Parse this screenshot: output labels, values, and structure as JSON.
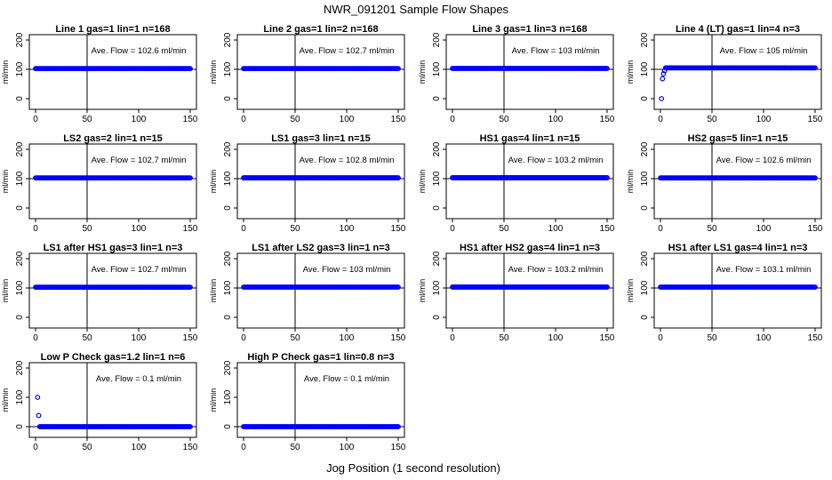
{
  "figure": {
    "title": "NWR_091201  Sample Flow Shapes",
    "xlabel": "Jog Position (1 second resolution)"
  },
  "colors": {
    "points": "#0000ff",
    "axes": "#000000",
    "refline": "#000000"
  },
  "chart_data": [
    {
      "type": "scatter",
      "title": "Line 1 gas=1 lin=1 n=168",
      "ylabel": "ml/min",
      "annotation": "Ave. Flow =  102.6  ml/min",
      "xlim": [
        0,
        150
      ],
      "ylim": [
        0,
        200
      ],
      "xticks": [
        0,
        50,
        100,
        150
      ],
      "yticks": [
        0,
        100,
        200
      ],
      "vline": 50,
      "hline": 100,
      "flow": {
        "start": 0,
        "end": 150,
        "level": 102.6,
        "initial": []
      }
    },
    {
      "type": "scatter",
      "title": "Line 2 gas=1 lin=2 n=168",
      "ylabel": "ml/min",
      "annotation": "Ave. Flow =  102.7  ml/min",
      "xlim": [
        0,
        150
      ],
      "ylim": [
        0,
        200
      ],
      "xticks": [
        0,
        50,
        100,
        150
      ],
      "yticks": [
        0,
        100,
        200
      ],
      "vline": 50,
      "hline": 100,
      "flow": {
        "start": 0,
        "end": 150,
        "level": 102.7,
        "initial": []
      }
    },
    {
      "type": "scatter",
      "title": "Line 3 gas=1 lin=3 n=168",
      "ylabel": "ml/min",
      "annotation": "Ave. Flow =  103  ml/min",
      "xlim": [
        0,
        150
      ],
      "ylim": [
        0,
        200
      ],
      "xticks": [
        0,
        50,
        100,
        150
      ],
      "yticks": [
        0,
        100,
        200
      ],
      "vline": 50,
      "hline": 100,
      "flow": {
        "start": 0,
        "end": 150,
        "level": 103,
        "initial": []
      }
    },
    {
      "type": "scatter",
      "title": "Line 4 (LT) gas=1 lin=4 n=3",
      "ylabel": "ml/min",
      "annotation": "Ave. Flow =  105  ml/min",
      "xlim": [
        0,
        150
      ],
      "ylim": [
        0,
        200
      ],
      "xticks": [
        0,
        50,
        100,
        150
      ],
      "yticks": [
        0,
        100,
        200
      ],
      "vline": 50,
      "hline": 100,
      "flow": {
        "start": 5,
        "end": 150,
        "level": 105,
        "initial": [
          [
            1,
            0
          ],
          [
            2,
            68
          ],
          [
            3,
            85
          ],
          [
            4,
            95
          ]
        ]
      }
    },
    {
      "type": "scatter",
      "title": "LS2 gas=2 lin=1 n=15",
      "ylabel": "ml/min",
      "annotation": "Ave. Flow =  102.7  ml/min",
      "xlim": [
        0,
        150
      ],
      "ylim": [
        0,
        200
      ],
      "xticks": [
        0,
        50,
        100,
        150
      ],
      "yticks": [
        0,
        100,
        200
      ],
      "vline": 50,
      "hline": 100,
      "flow": {
        "start": 0,
        "end": 150,
        "level": 102.7,
        "initial": []
      }
    },
    {
      "type": "scatter",
      "title": "LS1 gas=3 lin=1 n=15",
      "ylabel": "ml/min",
      "annotation": "Ave. Flow =  102.8  ml/min",
      "xlim": [
        0,
        150
      ],
      "ylim": [
        0,
        200
      ],
      "xticks": [
        0,
        50,
        100,
        150
      ],
      "yticks": [
        0,
        100,
        200
      ],
      "vline": 50,
      "hline": 100,
      "flow": {
        "start": 0,
        "end": 150,
        "level": 102.8,
        "initial": []
      }
    },
    {
      "type": "scatter",
      "title": "HS1 gas=4 lin=1 n=15",
      "ylabel": "ml/min",
      "annotation": "Ave. Flow =  103.2  ml/min",
      "xlim": [
        0,
        150
      ],
      "ylim": [
        0,
        200
      ],
      "xticks": [
        0,
        50,
        100,
        150
      ],
      "yticks": [
        0,
        100,
        200
      ],
      "vline": 50,
      "hline": 100,
      "flow": {
        "start": 0,
        "end": 150,
        "level": 103.2,
        "initial": []
      }
    },
    {
      "type": "scatter",
      "title": "HS2 gas=5 lin=1 n=15",
      "ylabel": "ml/min",
      "annotation": "Ave. Flow =  102.6  ml/min",
      "xlim": [
        0,
        150
      ],
      "ylim": [
        0,
        200
      ],
      "xticks": [
        0,
        50,
        100,
        150
      ],
      "yticks": [
        0,
        100,
        200
      ],
      "vline": 50,
      "hline": 100,
      "flow": {
        "start": 0,
        "end": 150,
        "level": 102.6,
        "initial": []
      }
    },
    {
      "type": "scatter",
      "title": "LS1 after HS1 gas=3 lin=1 n=3",
      "ylabel": "ml/min",
      "annotation": "Ave. Flow =  102.7  ml/min",
      "xlim": [
        0,
        150
      ],
      "ylim": [
        0,
        200
      ],
      "xticks": [
        0,
        50,
        100,
        150
      ],
      "yticks": [
        0,
        100,
        200
      ],
      "vline": 50,
      "hline": 100,
      "flow": {
        "start": 0,
        "end": 150,
        "level": 102.7,
        "initial": []
      }
    },
    {
      "type": "scatter",
      "title": "LS1 after LS2 gas=3 lin=1 n=3",
      "ylabel": "ml/min",
      "annotation": "Ave. Flow =  103  ml/min",
      "xlim": [
        0,
        150
      ],
      "ylim": [
        0,
        200
      ],
      "xticks": [
        0,
        50,
        100,
        150
      ],
      "yticks": [
        0,
        100,
        200
      ],
      "vline": 50,
      "hline": 100,
      "flow": {
        "start": 0,
        "end": 150,
        "level": 103,
        "initial": []
      }
    },
    {
      "type": "scatter",
      "title": "HS1 after HS2 gas=4 lin=1 n=3",
      "ylabel": "ml/min",
      "annotation": "Ave. Flow =  103.2  ml/min",
      "xlim": [
        0,
        150
      ],
      "ylim": [
        0,
        200
      ],
      "xticks": [
        0,
        50,
        100,
        150
      ],
      "yticks": [
        0,
        100,
        200
      ],
      "vline": 50,
      "hline": 100,
      "flow": {
        "start": 0,
        "end": 150,
        "level": 103.2,
        "initial": []
      }
    },
    {
      "type": "scatter",
      "title": "HS1 after LS1 gas=4 lin=1 n=3",
      "ylabel": "ml/min",
      "annotation": "Ave. Flow =  103.1  ml/min",
      "xlim": [
        0,
        150
      ],
      "ylim": [
        0,
        200
      ],
      "xticks": [
        0,
        50,
        100,
        150
      ],
      "yticks": [
        0,
        100,
        200
      ],
      "vline": 50,
      "hline": 100,
      "flow": {
        "start": 0,
        "end": 150,
        "level": 103.1,
        "initial": []
      }
    },
    {
      "type": "scatter",
      "title": "Low P Check gas=1.2 lin=1 n=6",
      "ylabel": "ml/min",
      "annotation": "Ave. Flow =  0.1  ml/min",
      "xlim": [
        0,
        150
      ],
      "ylim": [
        0,
        200
      ],
      "xticks": [
        0,
        50,
        100,
        150
      ],
      "yticks": [
        0,
        100,
        200
      ],
      "vline": 50,
      "hline": 0,
      "flow": {
        "start": 4,
        "end": 150,
        "level": 0.1,
        "initial": [
          [
            2,
            100
          ],
          [
            3,
            38
          ]
        ]
      }
    },
    {
      "type": "scatter",
      "title": "High P Check gas=1 lin=0.8 n=3",
      "ylabel": "ml/min",
      "annotation": "Ave. Flow =  0.1  ml/min",
      "xlim": [
        0,
        150
      ],
      "ylim": [
        0,
        200
      ],
      "xticks": [
        0,
        50,
        100,
        150
      ],
      "yticks": [
        0,
        100,
        200
      ],
      "vline": 50,
      "hline": 0,
      "flow": {
        "start": 0,
        "end": 150,
        "level": 0.1,
        "initial": []
      }
    }
  ]
}
